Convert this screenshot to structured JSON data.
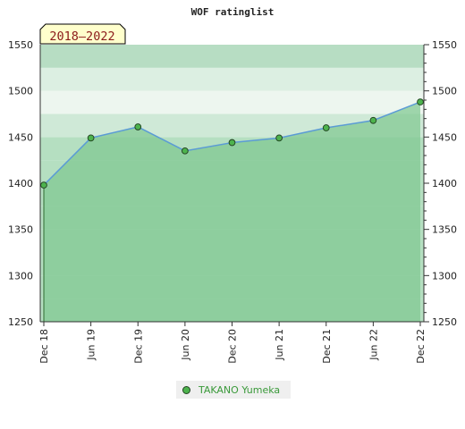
{
  "chart_data": {
    "type": "line",
    "title": "WOF ratinglist",
    "period_badge": "2018–2022",
    "categories": [
      "Dec 18",
      "Jun 19",
      "Dec 19",
      "Jun 20",
      "Dec 20",
      "Jun 21",
      "Dec 21",
      "Jun 22",
      "Dec 22"
    ],
    "series": [
      {
        "name": "TAKANO Yumeka",
        "values": [
          1398,
          1449,
          1461,
          1435,
          1444,
          1449,
          1460,
          1468,
          1488
        ]
      }
    ],
    "ylim": [
      1250,
      1550
    ],
    "yticks": [
      1250,
      1300,
      1350,
      1400,
      1450,
      1500,
      1550
    ],
    "xlabel": "",
    "ylabel": "",
    "grid": false,
    "legend": "bottom-center",
    "colors": {
      "line": "#5b9bd5",
      "marker": "#4db34d",
      "fill": "#80c890"
    }
  }
}
